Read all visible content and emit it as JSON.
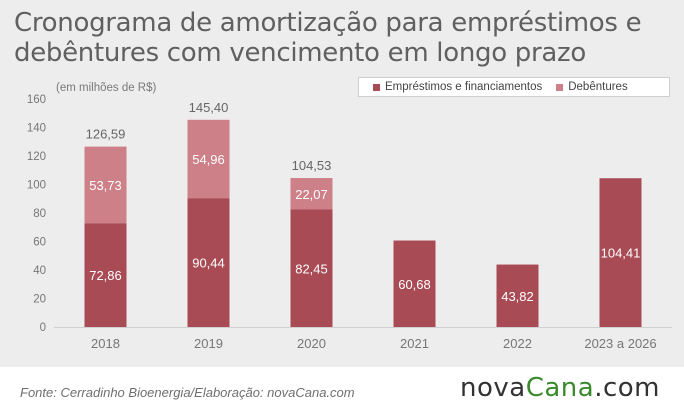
{
  "title_line1": "Cronograma de amortização para empréstimos e",
  "title_line2": "debêntures com vencimento em longo prazo",
  "source": "Fonte: Cerradinho Bioenergia/Elaboração: novaCana.com",
  "logo": {
    "part1": "nova",
    "part2": "Cana",
    "part3": ".com"
  },
  "colors": {
    "loans": "#a84b55",
    "debentures": "#cd8088",
    "background": "#ededed",
    "logo_accent": "#3a8a2d"
  },
  "chart_data": {
    "type": "bar",
    "stacked": true,
    "subtitle": "(em milhões de R$)",
    "categories": [
      "2018",
      "2019",
      "2020",
      "2021",
      "2022",
      "2023 a 2026"
    ],
    "series": [
      {
        "name": "Empréstimos e financiamentos",
        "values": [
          72.86,
          90.44,
          82.45,
          60.68,
          43.82,
          104.41
        ],
        "labels": [
          "72,86",
          "90,44",
          "82,45",
          "60,68",
          "43,82",
          "104,41"
        ]
      },
      {
        "name": "Debêntures",
        "values": [
          53.73,
          54.96,
          22.07,
          0,
          0,
          0
        ],
        "labels": [
          "53,73",
          "54,96",
          "22,07",
          "",
          "",
          ""
        ]
      }
    ],
    "totals": [
      "126,59",
      "145,40",
      "104,53",
      "",
      "",
      ""
    ],
    "ylim": [
      0,
      160
    ],
    "yticks": [
      "0",
      "20",
      "40",
      "60",
      "80",
      "100",
      "120",
      "140",
      "160"
    ],
    "grid": false,
    "legend_position": "top-right"
  }
}
